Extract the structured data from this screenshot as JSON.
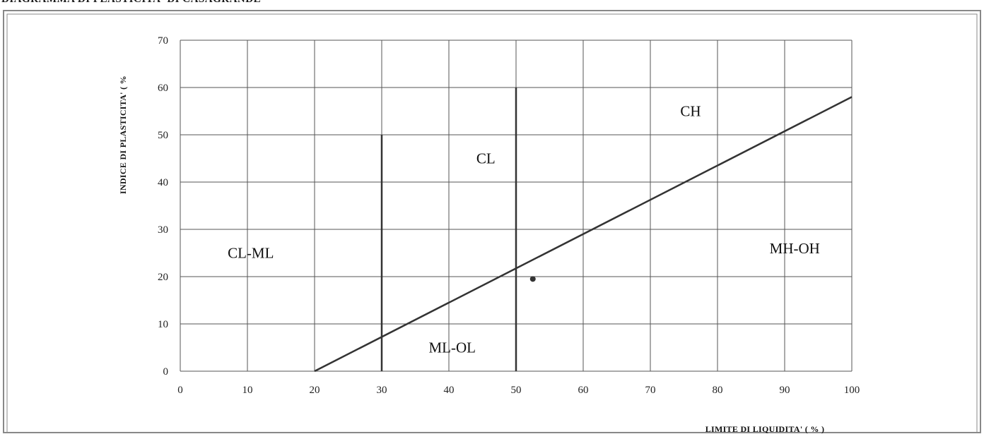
{
  "page": {
    "title": "DIAGRAMMA DI PLASTICITA' DI CASAGRANDE"
  },
  "chart_data": {
    "type": "scatter",
    "title": "DIAGRAMMA DI PLASTICITA' DI CASAGRANDE",
    "xlabel": "LIMITE DI LIQUIDITA' ( % )",
    "ylabel": "INDICE DI PLASTICITA' ( %",
    "xlim": [
      0,
      100
    ],
    "ylim": [
      0,
      70
    ],
    "x_ticks": [
      0,
      10,
      20,
      30,
      40,
      50,
      60,
      70,
      80,
      90,
      100
    ],
    "y_ticks": [
      0,
      10,
      20,
      30,
      40,
      50,
      60,
      70
    ],
    "grid": true,
    "legend": "none",
    "a_line": {
      "points": [
        [
          20,
          0
        ],
        [
          100,
          58
        ]
      ]
    },
    "boundaries": [
      {
        "x": 30,
        "y_range": [
          0,
          50
        ]
      },
      {
        "x": 50,
        "y_range": [
          0,
          60
        ]
      }
    ],
    "zones": [
      {
        "label": "CL-ML",
        "x": 10.5,
        "y": 25
      },
      {
        "label": "CL",
        "x": 45.5,
        "y": 45
      },
      {
        "label": "CH",
        "x": 76,
        "y": 55
      },
      {
        "label": "ML-OL",
        "x": 40.5,
        "y": 5
      },
      {
        "label": "MH-OH",
        "x": 91.5,
        "y": 26
      }
    ],
    "points": [
      {
        "x": 52.5,
        "y": 19.5
      }
    ],
    "colors": {
      "grid": "#555555",
      "lines": "#333333",
      "point": "#333333",
      "frame": "#888888"
    }
  }
}
